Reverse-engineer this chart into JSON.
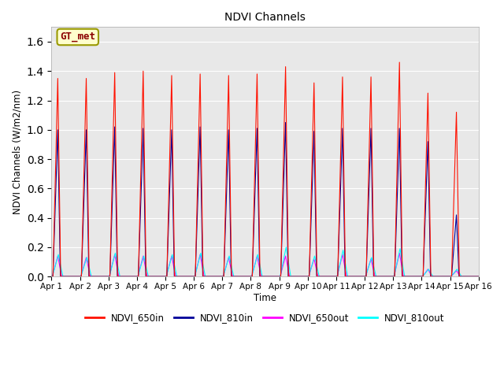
{
  "title": "NDVI Channels",
  "ylabel": "NDVI Channels (W/m2/nm)",
  "xlabel": "Time",
  "xlim_start": 0,
  "xlim_end": 15,
  "ylim": [
    0.0,
    1.7
  ],
  "yticks": [
    0.0,
    0.2,
    0.4,
    0.6,
    0.8,
    1.0,
    1.2,
    1.4,
    1.6
  ],
  "xtick_labels": [
    "Apr 1",
    "Apr 2",
    "Apr 3",
    "Apr 4",
    "Apr 5",
    "Apr 6",
    "Apr 7",
    "Apr 8",
    "Apr 9",
    "Apr 10",
    "Apr 11",
    "Apr 12",
    "Apr 13",
    "Apr 14",
    "Apr 15",
    "Apr 16"
  ],
  "xtick_positions": [
    0,
    1,
    2,
    3,
    4,
    5,
    6,
    7,
    8,
    9,
    10,
    11,
    12,
    13,
    14,
    15
  ],
  "fig_bg_color": "#ffffff",
  "plot_bg_color": "#e8e8e8",
  "legend_label": "GT_met",
  "legend_bg": "#ffffcc",
  "legend_border_color": "#999900",
  "legend_text_color": "#8b0000",
  "line_650in_color": "#ff1100",
  "line_810in_color": "#000099",
  "line_650out_color": "#ff00ff",
  "line_810out_color": "#00ffff",
  "peaks_650in": [
    1.35,
    1.35,
    1.39,
    1.4,
    1.37,
    1.38,
    1.37,
    1.38,
    1.43,
    1.32,
    1.36,
    1.36,
    1.46,
    1.25,
    1.12
  ],
  "peaks_810in": [
    1.0,
    1.0,
    1.02,
    1.01,
    1.0,
    1.02,
    1.0,
    1.01,
    1.05,
    0.99,
    1.01,
    1.01,
    1.01,
    0.92,
    0.42
  ],
  "peaks_650out": [
    0.14,
    0.13,
    0.15,
    0.14,
    0.14,
    0.15,
    0.13,
    0.14,
    0.14,
    0.12,
    0.15,
    0.12,
    0.16,
    0.05,
    0.04
  ],
  "peaks_810out": [
    0.15,
    0.13,
    0.16,
    0.14,
    0.15,
    0.16,
    0.14,
    0.15,
    0.2,
    0.14,
    0.18,
    0.13,
    0.19,
    0.05,
    0.05
  ],
  "grid_color": "#ffffff",
  "linewidth": 0.8
}
